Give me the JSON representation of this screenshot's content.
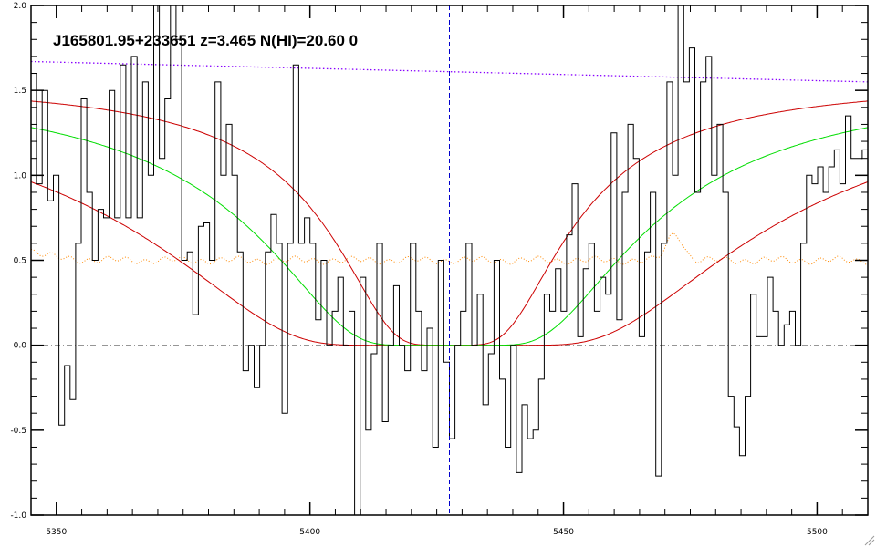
{
  "chart_data": {
    "type": "line",
    "title": "J165801.95+233651 z=3.465 N(HI)=20.60 0",
    "xlabel": "",
    "ylabel": "",
    "xlim": [
      5345,
      5510
    ],
    "ylim": [
      -1.0,
      2.0
    ],
    "x_ticks": [
      5350,
      5400,
      5450,
      5500
    ],
    "y_ticks": [
      -1.0,
      -0.5,
      0.0,
      0.5,
      1.0,
      1.5,
      2.0
    ],
    "x_tick_labels": [
      "5350",
      "5400",
      "5450",
      "5500"
    ],
    "y_tick_labels": [
      "-1.0",
      "-0.5",
      "0.0",
      "0.5",
      "1.0",
      "1.5",
      "2.0"
    ],
    "grid": false,
    "center_wavelength": 5427.5,
    "flux": {
      "x_start": 5345,
      "x_step": 1.1,
      "values": [
        1.6,
        0.95,
        1.5,
        0.85,
        1.0,
        -0.47,
        -0.12,
        -0.32,
        0.6,
        1.45,
        0.9,
        0.5,
        0.8,
        0.75,
        1.5,
        0.75,
        1.65,
        0.75,
        1.7,
        0.75,
        1.55,
        1.0,
        2.0,
        1.1,
        1.45,
        2.0,
        1.8,
        0.5,
        0.55,
        0.18,
        0.7,
        0.72,
        0.5,
        1.55,
        1.0,
        1.3,
        1.0,
        0.55,
        -0.15,
        0.0,
        -0.25,
        0.0,
        0.55,
        0.77,
        0.6,
        -0.4,
        0.6,
        1.65,
        0.6,
        0.75,
        0.6,
        0.15,
        0.5,
        0.0,
        0.2,
        0.4,
        0.0,
        0.2,
        -1.0,
        0.4,
        -0.5,
        -0.05,
        0.6,
        -0.45,
        0.0,
        0.35,
        0.0,
        -0.15,
        0.6,
        0.2,
        -0.15,
        0.1,
        -0.6,
        0.5,
        -0.1,
        -0.55,
        0.0,
        0.2,
        0.6,
        0.0,
        0.3,
        -0.35,
        -0.05,
        0.5,
        -0.2,
        -0.6,
        0.0,
        -0.75,
        -0.35,
        -0.55,
        -0.5,
        -0.2,
        0.3,
        0.2,
        0.45,
        0.2,
        0.65,
        0.95,
        0.05,
        0.45,
        0.6,
        0.2,
        0.4,
        0.3,
        1.25,
        0.15,
        0.9,
        1.3,
        1.1,
        0.05,
        0.55,
        0.9,
        -0.77,
        0.6,
        1.55,
        1.0,
        2.0,
        1.55,
        1.75,
        0.9,
        1.55,
        1.7,
        1.0,
        1.3,
        0.9,
        -0.3,
        -0.48,
        -0.65,
        -0.3,
        0.3,
        0.05,
        0.05,
        0.4,
        0.2,
        0.0,
        0.12,
        0.2,
        0.0,
        0.6,
        1.0,
        0.95,
        1.05,
        0.9,
        1.05,
        1.15,
        0.95,
        1.35,
        1.1,
        1.1,
        1.15,
        0.5,
        1.0,
        0.75,
        1.3,
        1.65
      ]
    },
    "models": {
      "continuum": 1.55,
      "b": 7.0,
      "tau_center": 26.6,
      "tau_upper": 10.6,
      "tau_lower": 66.8
    },
    "error_spectrum": {
      "base": 0.5,
      "bump_center": 5472,
      "bump_amp": 0.16
    },
    "upper_continuum": {
      "start": 1.67,
      "end": 1.55
    },
    "series": [
      {
        "role": "flux",
        "color": "#000000"
      },
      {
        "role": "fit",
        "color": "#00dd00"
      },
      {
        "role": "fit-bounds",
        "color": "#cc0000"
      },
      {
        "role": "continuum",
        "color": "#8800ff"
      },
      {
        "role": "error",
        "color": "#ff8800"
      },
      {
        "role": "zero",
        "color": "#888888"
      },
      {
        "role": "center",
        "color": "#0000cc"
      }
    ]
  }
}
